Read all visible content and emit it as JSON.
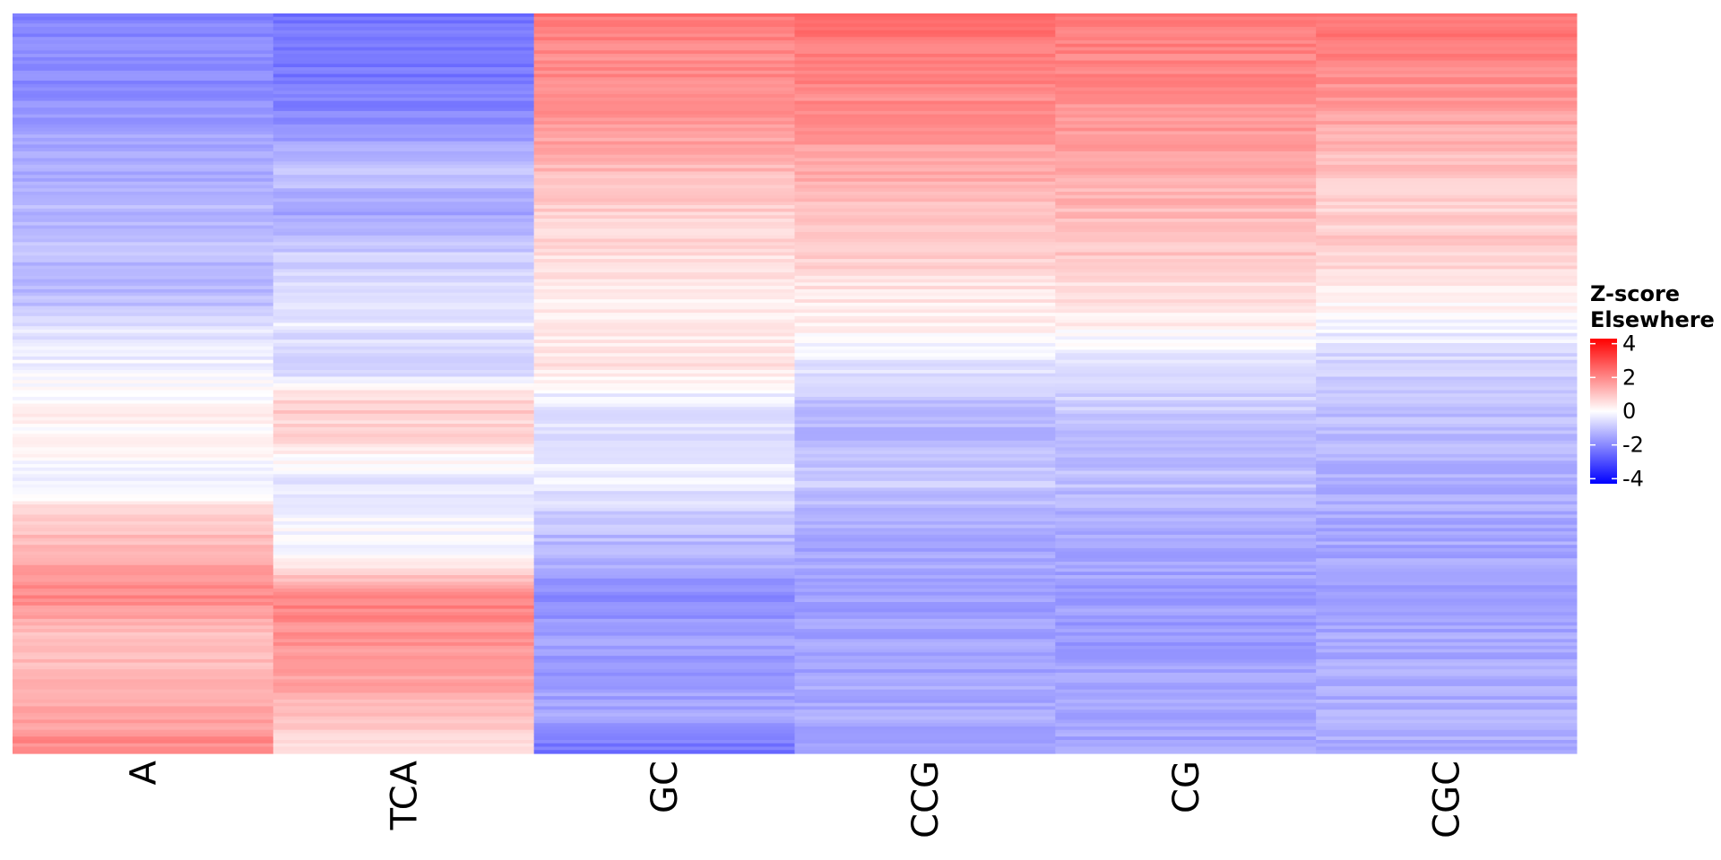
{
  "chart_data": {
    "type": "heatmap",
    "title": "",
    "xlabel": "",
    "ylabel": "",
    "columns": [
      "A",
      "TCA",
      "GC",
      "CCG",
      "CG",
      "CGC"
    ],
    "row_axis_labels_visible": false,
    "color_scale": {
      "low_color": "#0000ff",
      "mid_color": "#ffffff",
      "high_color": "#ff0000",
      "min": -4.3,
      "mid": 0,
      "max": 4.3
    },
    "legend": {
      "title_lines": [
        "Z-score",
        "Elsewhere"
      ],
      "ticks": [
        4,
        2,
        0,
        -2,
        -4
      ],
      "tick_labels": [
        "4",
        "2",
        "0",
        "-2",
        "-4"
      ],
      "placement": "right"
    },
    "row_count_sampled": 20,
    "column_profiles": [
      {
        "column": "A",
        "values": [
          -2.2,
          -1.9,
          -2.0,
          -1.6,
          -1.4,
          -1.2,
          -1.0,
          -1.3,
          -0.6,
          -0.2,
          0.1,
          0.2,
          -0.3,
          0.8,
          1.5,
          2.0,
          1.0,
          1.3,
          1.4,
          2.1
        ]
      },
      {
        "column": "TCA",
        "values": [
          -2.4,
          -2.3,
          -2.2,
          -1.9,
          -0.8,
          -1.6,
          -0.9,
          -0.7,
          -0.3,
          -1.1,
          0.9,
          0.6,
          -0.4,
          -0.1,
          0.0,
          2.2,
          1.8,
          1.7,
          1.1,
          0.3
        ]
      },
      {
        "column": "GC",
        "values": [
          2.3,
          2.0,
          1.9,
          1.7,
          1.2,
          0.9,
          0.6,
          0.4,
          0.3,
          0.5,
          -0.4,
          -0.6,
          -0.2,
          -1.0,
          -1.3,
          -2.1,
          -1.6,
          -1.7,
          -1.5,
          -2.4
        ]
      },
      {
        "column": "CCG",
        "values": [
          2.4,
          2.2,
          2.0,
          1.8,
          1.5,
          1.1,
          0.9,
          0.5,
          0.3,
          -0.4,
          -1.0,
          -1.2,
          -0.8,
          -1.4,
          -1.5,
          -1.6,
          -1.6,
          -1.5,
          -1.4,
          -1.5
        ]
      },
      {
        "column": "CG",
        "values": [
          2.3,
          2.1,
          1.9,
          1.7,
          1.4,
          1.2,
          1.0,
          0.6,
          0.3,
          -0.6,
          -0.8,
          -1.3,
          -1.0,
          -1.4,
          -1.5,
          -1.6,
          -1.7,
          -1.6,
          -1.5,
          -1.5
        ]
      },
      {
        "column": "CGC",
        "values": [
          2.4,
          2.1,
          1.8,
          1.4,
          1.0,
          0.8,
          0.9,
          0.4,
          -0.1,
          -0.8,
          -1.0,
          -1.2,
          -1.3,
          -1.4,
          -1.5,
          -1.5,
          -1.5,
          -1.4,
          -1.4,
          -1.4
        ]
      }
    ]
  }
}
